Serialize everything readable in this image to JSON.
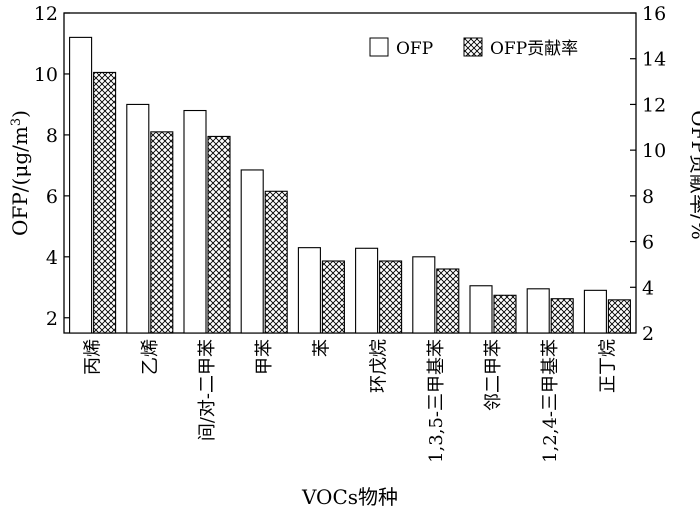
{
  "chart_data": {
    "type": "bar",
    "categories": [
      "丙烯",
      "乙烯",
      "间/对-二甲苯",
      "甲苯",
      "苯",
      "环戊烷",
      "1,3,5-三甲基苯",
      "邻二甲苯",
      "1,2,4-三甲基苯",
      "正丁烷"
    ],
    "series": [
      {
        "name": "OFP",
        "axis": "left",
        "fill": "#ffffff",
        "values": [
          11.2,
          9.0,
          8.8,
          6.85,
          4.3,
          4.28,
          4.0,
          3.05,
          2.95,
          2.9
        ]
      },
      {
        "name": "OFP贡献率",
        "axis": "right",
        "fill": "crosshatch",
        "values": [
          13.4,
          10.8,
          10.6,
          8.2,
          5.15,
          5.15,
          4.8,
          3.65,
          3.5,
          3.45
        ]
      }
    ],
    "xlabel": "VOCs物种",
    "ylabel": "OFP/(μg/m³)",
    "ylabel_prefix": "OFP/(μg/m",
    "ylabel_sup": "3",
    "ylabel_suffix": ")",
    "y2label": "OFP贡献率/%",
    "ylim": [
      1.5,
      12
    ],
    "y2lim": [
      2,
      16
    ],
    "yticks": [
      2,
      4,
      6,
      8,
      10,
      12
    ],
    "y2ticks": [
      2,
      4,
      6,
      8,
      10,
      12,
      14,
      16
    ],
    "legend_position": "top-right",
    "grid": false
  }
}
